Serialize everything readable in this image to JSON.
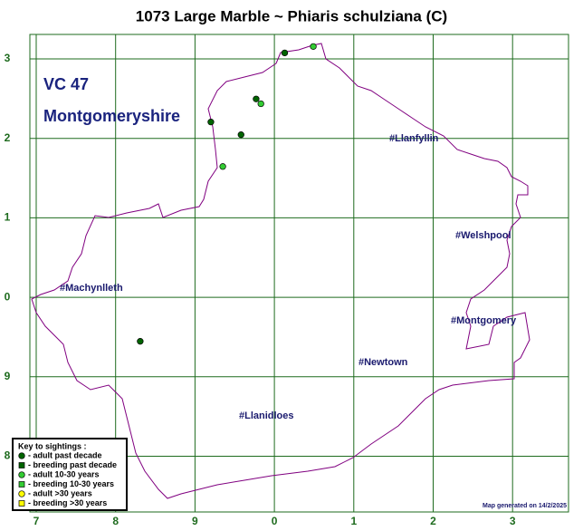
{
  "title": "1073 Large Marble ~ Phiaris schulziana (C)",
  "vice_county": {
    "code": "VC 47",
    "name": "Montgomeryshire"
  },
  "grid": {
    "x_labels": [
      "7",
      "8",
      "9",
      "0",
      "1",
      "2",
      "3"
    ],
    "y_labels": [
      "3",
      "2",
      "1",
      "0",
      "9",
      "8"
    ]
  },
  "towns": [
    "#Llanfyllin",
    "#Welshpool",
    "#Machynlleth",
    "#Montgomery",
    "#Newtown",
    "#Llanidloes"
  ],
  "key": {
    "title": "Key to sightings :",
    "items": [
      {
        "label": "- adult past decade",
        "shape": "circle",
        "color": "#006400"
      },
      {
        "label": "- breeding past decade",
        "shape": "square",
        "color": "#006400"
      },
      {
        "label": "- adult 10-30 years",
        "shape": "circle",
        "color": "#33cc33"
      },
      {
        "label": "- breeding 10-30 years",
        "shape": "square",
        "color": "#33cc33"
      },
      {
        "label": "- adult >30 years",
        "shape": "circle",
        "color": "#ffff00"
      },
      {
        "label": "- breeding >30 years",
        "shape": "square",
        "color": "#ffff00"
      }
    ]
  },
  "sightings": [
    {
      "key": 0,
      "x": 3.13,
      "y": 5.07
    },
    {
      "key": 0,
      "x": 2.77,
      "y": 4.49
    },
    {
      "key": 0,
      "x": 2.2,
      "y": 4.2
    },
    {
      "key": 0,
      "x": 2.58,
      "y": 4.04
    },
    {
      "key": 0,
      "x": 1.31,
      "y": 1.44
    },
    {
      "key": 2,
      "x": 3.49,
      "y": 5.15
    },
    {
      "key": 2,
      "x": 2.83,
      "y": 4.43
    },
    {
      "key": 2,
      "x": 2.35,
      "y": 3.64
    }
  ],
  "footer": "Map generated on 14/2/2025"
}
